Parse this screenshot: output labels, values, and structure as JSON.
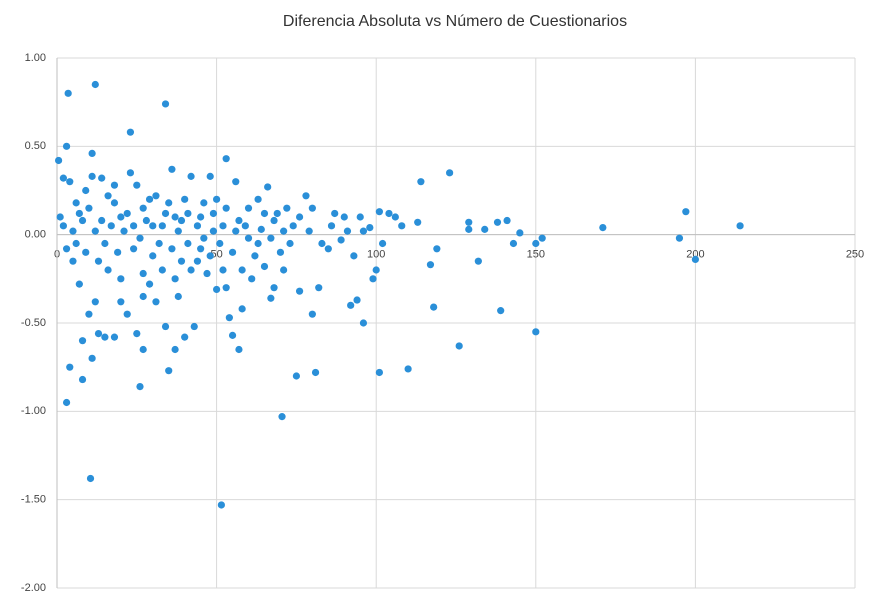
{
  "chart_data": {
    "type": "scatter",
    "title": "Diferencia Absoluta vs Número de Cuestionarios",
    "color": "#2a8fd8",
    "grid": true,
    "xlim": [
      0,
      250
    ],
    "xticks": [
      0,
      50,
      100,
      150,
      200,
      250
    ],
    "ylim": [
      -2,
      1
    ],
    "yticks": [
      {
        "value": 1,
        "label": "1.00"
      },
      {
        "value": 0.5,
        "label": "0.50"
      },
      {
        "value": 0,
        "label": "0.00"
      },
      {
        "value": -0.5,
        "label": "-0.50"
      },
      {
        "value": -1,
        "label": "-1.00"
      },
      {
        "value": -1.5,
        "label": "-1.50"
      },
      {
        "value": -2,
        "label": "-2.00"
      }
    ],
    "x": [
      3.5,
      12,
      34,
      23,
      3,
      11,
      53,
      36,
      0.5,
      3,
      10.5,
      51.5,
      70.5,
      4,
      8,
      26,
      27,
      11,
      35,
      37,
      57,
      55,
      75,
      81,
      80,
      96,
      101,
      110,
      118,
      126,
      139,
      150,
      114,
      123,
      171,
      197,
      195,
      200,
      214,
      152,
      150,
      145,
      143,
      141,
      138,
      134,
      132,
      129,
      129,
      119,
      117,
      113,
      108,
      104,
      106,
      101,
      102,
      100,
      99,
      98,
      94,
      92,
      95,
      90,
      87,
      85,
      82,
      80,
      78,
      76,
      74,
      72,
      70,
      68,
      67,
      66,
      64,
      62,
      60,
      58,
      56,
      54,
      52,
      50,
      48,
      47,
      45,
      44,
      42,
      43,
      40,
      38,
      34,
      31,
      29,
      27,
      25,
      22,
      20,
      18,
      15,
      13,
      12,
      10,
      8,
      7,
      5,
      3,
      2,
      4,
      6,
      9,
      11,
      14,
      16,
      18,
      20,
      23,
      25,
      27,
      29,
      31,
      33,
      35,
      37,
      39,
      41,
      46,
      49,
      53,
      57,
      60,
      63,
      65,
      68,
      71,
      73,
      76,
      79,
      83,
      86,
      89,
      91,
      93,
      96,
      1,
      2,
      5,
      6,
      8,
      9,
      10,
      12,
      13,
      14,
      15,
      16,
      17,
      19,
      20,
      21,
      22,
      24,
      24,
      26,
      27,
      28,
      30,
      30,
      32,
      33,
      34,
      36,
      37,
      38,
      39,
      40,
      41,
      42,
      44,
      45,
      46,
      48,
      49,
      50,
      51,
      52,
      53,
      55,
      56,
      58,
      59,
      61,
      63,
      65,
      67,
      69,
      71,
      18,
      7
    ],
    "values": [
      0.8,
      0.85,
      0.74,
      0.58,
      0.5,
      0.46,
      0.43,
      0.37,
      0.42,
      -0.95,
      -1.38,
      -1.53,
      -1.03,
      -0.75,
      -0.82,
      -0.86,
      -0.65,
      -0.7,
      -0.77,
      -0.65,
      -0.65,
      -0.57,
      -0.8,
      -0.78,
      -0.45,
      -0.5,
      -0.78,
      -0.76,
      -0.41,
      -0.63,
      -0.43,
      -0.55,
      0.3,
      0.35,
      0.04,
      0.13,
      -0.02,
      -0.14,
      0.05,
      -0.02,
      -0.05,
      0.01,
      -0.05,
      0.08,
      0.07,
      0.03,
      -0.15,
      0.07,
      0.03,
      -0.08,
      -0.17,
      0.07,
      0.05,
      0.12,
      0.1,
      0.13,
      -0.05,
      -0.2,
      -0.25,
      0.04,
      -0.37,
      -0.4,
      0.1,
      0.1,
      0.12,
      -0.08,
      -0.3,
      0.15,
      0.22,
      -0.32,
      0.05,
      0.15,
      -0.1,
      -0.3,
      -0.36,
      0.27,
      0.03,
      -0.12,
      0.15,
      -0.42,
      0.3,
      -0.47,
      -0.2,
      -0.31,
      0.33,
      -0.22,
      -0.08,
      0.05,
      0.33,
      -0.52,
      -0.58,
      -0.35,
      -0.52,
      -0.38,
      -0.28,
      -0.22,
      -0.56,
      -0.45,
      -0.38,
      -0.58,
      -0.58,
      -0.56,
      -0.38,
      -0.45,
      -0.6,
      -0.28,
      -0.15,
      -0.08,
      0.32,
      0.3,
      0.18,
      0.25,
      0.33,
      0.32,
      0.22,
      0.18,
      0.1,
      0.35,
      0.28,
      0.15,
      0.2,
      0.22,
      0.05,
      0.18,
      0.1,
      0.08,
      0.12,
      0.18,
      0.12,
      0.15,
      0.08,
      -0.02,
      0.2,
      0.12,
      0.08,
      0.02,
      -0.05,
      0.1,
      0.02,
      -0.05,
      0.05,
      -0.03,
      0.02,
      -0.12,
      0.02,
      0.1,
      0.05,
      0.02,
      -0.05,
      0.08,
      -0.1,
      0.15,
      0.02,
      -0.15,
      0.08,
      -0.05,
      -0.2,
      0.05,
      -0.1,
      -0.25,
      0.02,
      0.12,
      -0.08,
      0.05,
      -0.02,
      -0.35,
      0.08,
      -0.12,
      0.05,
      -0.05,
      -0.2,
      0.12,
      -0.08,
      -0.25,
      0.02,
      -0.15,
      0.2,
      -0.05,
      -0.2,
      -0.15,
      0.1,
      -0.02,
      -0.12,
      0.02,
      0.2,
      -0.05,
      0.05,
      -0.3,
      -0.1,
      0.02,
      -0.2,
      0.05,
      -0.25,
      -0.05,
      -0.18,
      -0.02,
      0.12,
      -0.2,
      0.28,
      0.12
    ]
  }
}
